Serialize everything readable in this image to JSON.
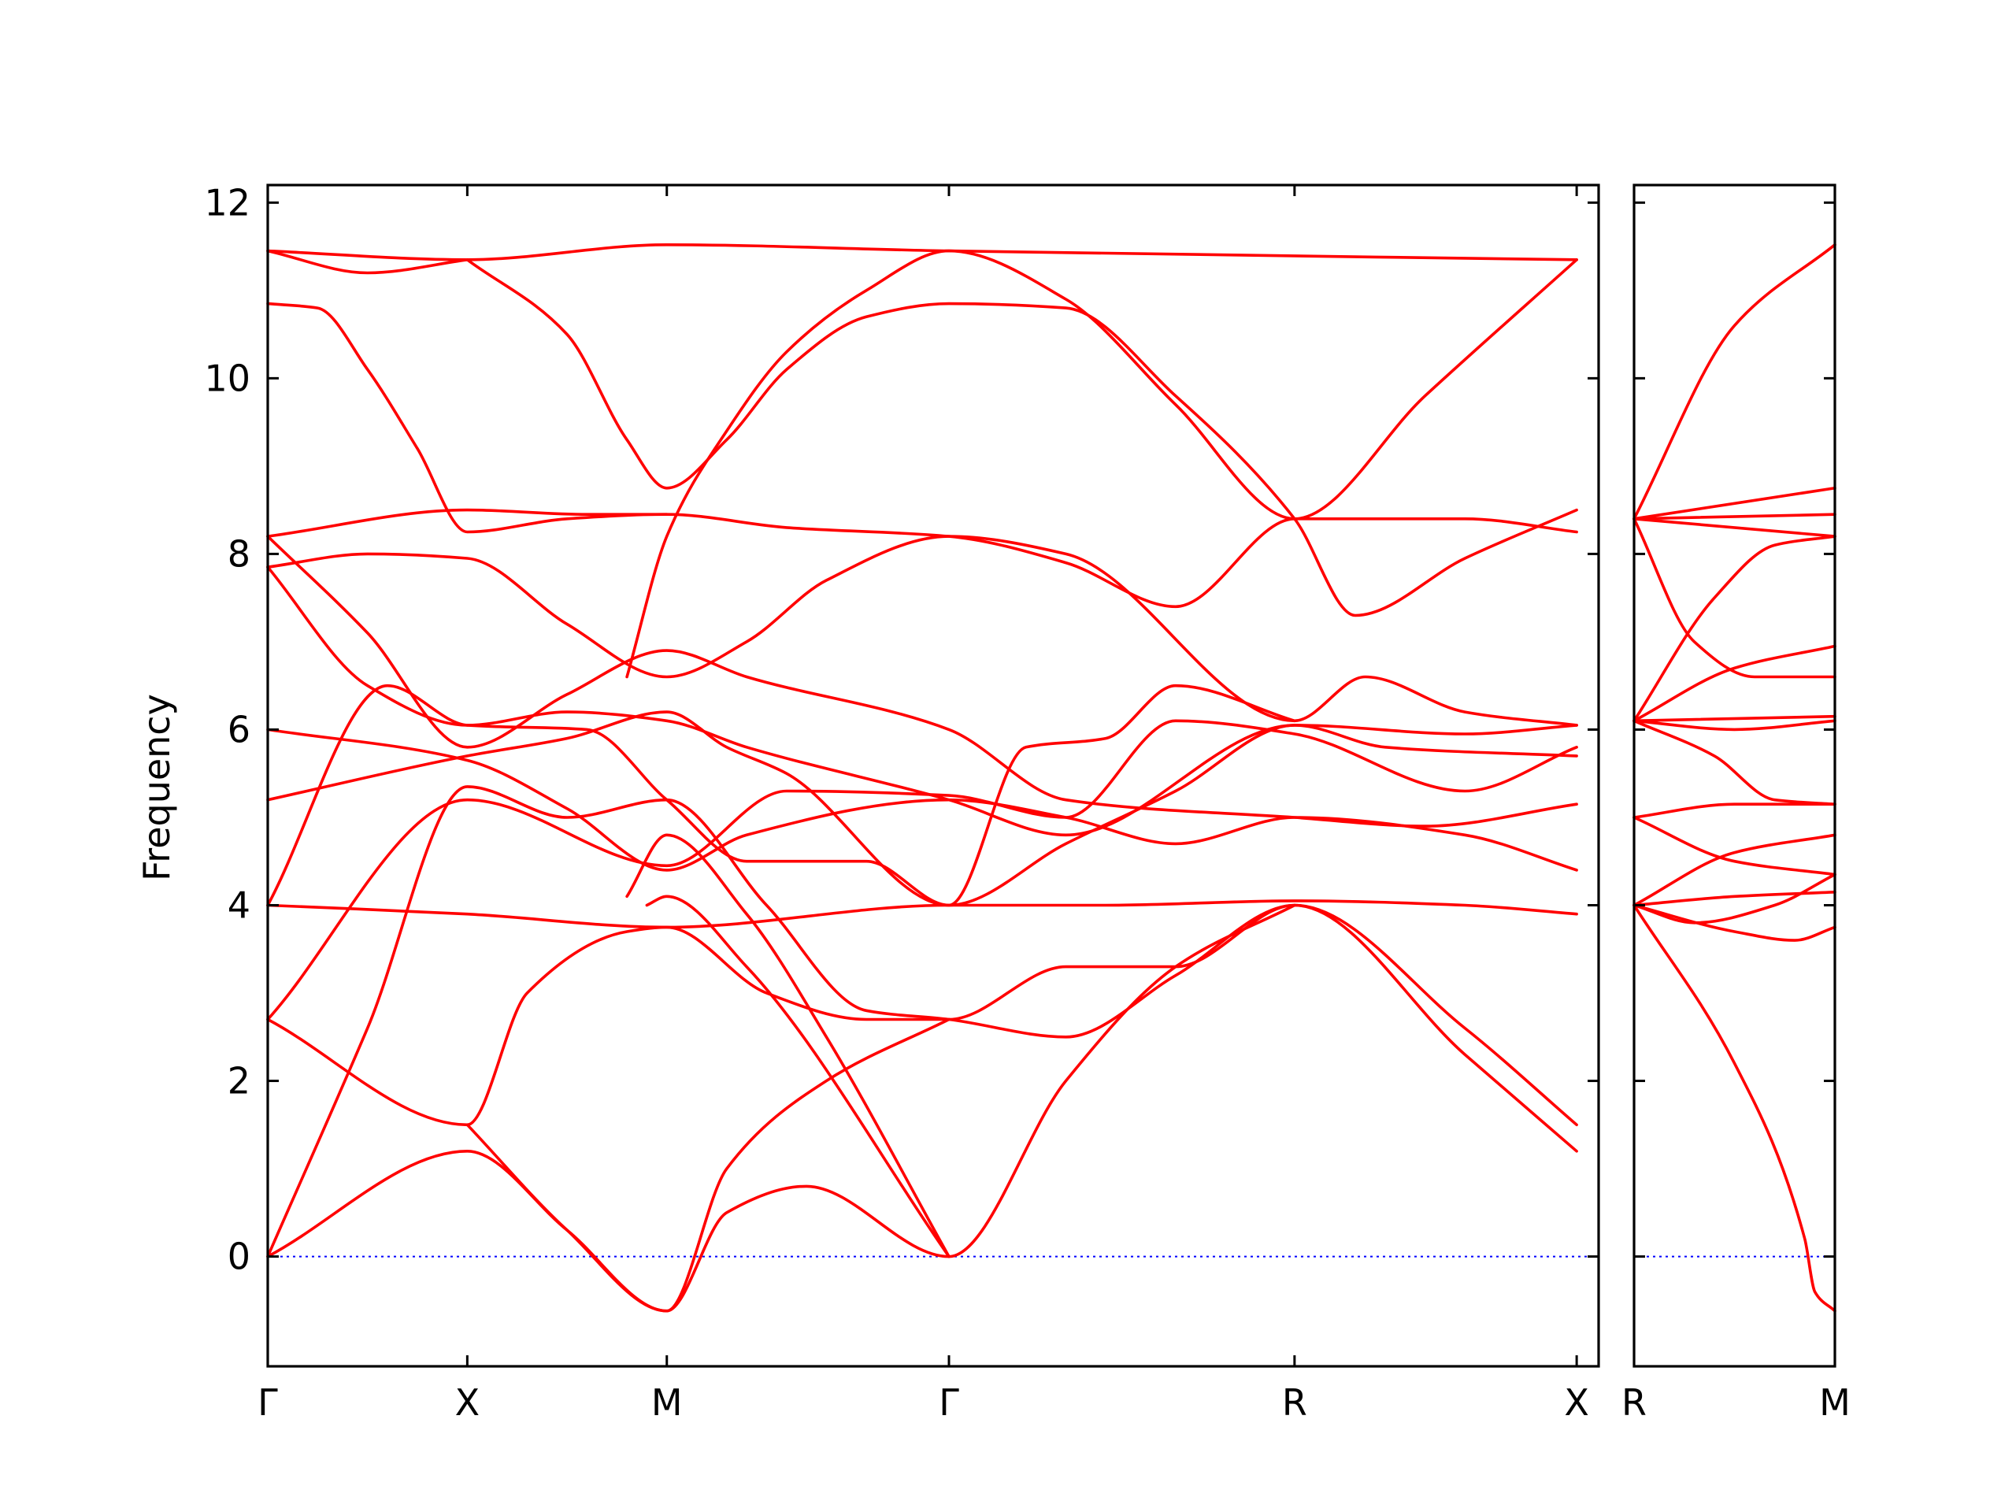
{
  "chart_data": {
    "type": "line",
    "ylabel": "Frequency",
    "ylim": [
      -1.25,
      12.2
    ],
    "yticks": [
      "0",
      "2",
      "4",
      "6",
      "8",
      "10",
      "12"
    ],
    "grid": false,
    "legend": "none",
    "colors": {
      "bands": "#ff0000",
      "zero_line": "#0000ff",
      "frame": "#000000"
    },
    "panels": [
      {
        "name": "main-path",
        "xlim": [
          0,
          6.67
        ],
        "ticks": [
          {
            "label": "Γ",
            "x": 0
          },
          {
            "label": "X",
            "x": 1
          },
          {
            "label": "M",
            "x": 2
          },
          {
            "label": "Γ",
            "x": 3.414
          },
          {
            "label": "R",
            "x": 5.146
          },
          {
            "label": "X",
            "x": 6.56
          }
        ],
        "bands": [
          [
            [
              0,
              11.45
            ],
            [
              1,
              11.35
            ],
            [
              2,
              11.52
            ],
            [
              3.414,
              11.45
            ],
            [
              6.56,
              11.35
            ]
          ],
          [
            [
              0,
              11.45
            ],
            [
              0.5,
              11.2
            ],
            [
              1,
              11.35
            ]
          ],
          [
            [
              0,
              10.85
            ],
            [
              0.25,
              10.8
            ],
            [
              0.5,
              10.1
            ],
            [
              0.75,
              9.2
            ],
            [
              1,
              8.25
            ],
            [
              1.5,
              8.4
            ],
            [
              2,
              8.45
            ],
            [
              2.6,
              8.3
            ],
            [
              3.414,
              8.2
            ],
            [
              4,
              7.9
            ],
            [
              4.55,
              7.4
            ],
            [
              5.146,
              8.4
            ],
            [
              6,
              8.4
            ],
            [
              6.56,
              8.25
            ]
          ],
          [
            [
              1,
              11.35
            ],
            [
              1.5,
              10.5
            ],
            [
              1.8,
              9.3
            ],
            [
              2,
              8.75
            ],
            [
              2.3,
              9.3
            ],
            [
              2.6,
              10.1
            ],
            [
              3,
              10.7
            ],
            [
              3.414,
              10.85
            ],
            [
              4,
              10.8
            ],
            [
              4.55,
              9.8
            ],
            [
              5.146,
              8.4
            ],
            [
              5.45,
              7.3
            ],
            [
              6,
              7.95
            ],
            [
              6.56,
              8.5
            ]
          ],
          [
            [
              1.8,
              6.6
            ],
            [
              2,
              8.2
            ],
            [
              2.3,
              9.4
            ],
            [
              2.6,
              10.3
            ],
            [
              3,
              11.0
            ],
            [
              3.414,
              11.45
            ],
            [
              4,
              10.9
            ],
            [
              4.55,
              9.7
            ],
            [
              5.146,
              8.4
            ],
            [
              5.8,
              9.8
            ],
            [
              6.56,
              11.35
            ]
          ],
          [
            [
              0,
              8.2
            ],
            [
              1,
              8.5
            ],
            [
              1.6,
              8.45
            ],
            [
              2,
              8.45
            ]
          ],
          [
            [
              0,
              7.85
            ],
            [
              0.5,
              8.0
            ],
            [
              1,
              7.95
            ],
            [
              1.5,
              7.2
            ],
            [
              2,
              6.6
            ],
            [
              2.4,
              7.0
            ],
            [
              2.8,
              7.7
            ],
            [
              3.414,
              8.2
            ],
            [
              4,
              8.0
            ],
            [
              5.146,
              6.1
            ],
            [
              5.5,
              6.6
            ],
            [
              6,
              6.2
            ],
            [
              6.56,
              6.05
            ]
          ],
          [
            [
              0,
              8.2
            ],
            [
              0.5,
              7.1
            ],
            [
              1,
              5.8
            ],
            [
              1.5,
              6.4
            ],
            [
              2,
              6.9
            ],
            [
              2.4,
              6.6
            ],
            [
              3.414,
              6.0
            ],
            [
              4,
              5.2
            ],
            [
              5.146,
              5.0
            ],
            [
              5.8,
              4.9
            ],
            [
              6.56,
              5.15
            ]
          ],
          [
            [
              0,
              7.85
            ],
            [
              0.5,
              6.5
            ],
            [
              1,
              6.05
            ],
            [
              1.5,
              6.2
            ],
            [
              2,
              6.1
            ],
            [
              2.4,
              5.8
            ],
            [
              3.414,
              5.2
            ],
            [
              4,
              4.8
            ],
            [
              5.146,
              6.05
            ],
            [
              5.6,
              5.8
            ],
            [
              6.56,
              5.7
            ]
          ],
          [
            [
              0,
              6.0
            ],
            [
              1,
              5.65
            ],
            [
              1.5,
              5.1
            ],
            [
              2,
              4.4
            ],
            [
              2.4,
              4.8
            ],
            [
              3.414,
              5.2
            ],
            [
              4,
              5.0
            ],
            [
              4.55,
              4.7
            ],
            [
              5.146,
              5.0
            ],
            [
              6,
              4.8
            ],
            [
              6.56,
              4.4
            ]
          ],
          [
            [
              0,
              5.2
            ],
            [
              1,
              5.7
            ],
            [
              1.5,
              5.9
            ],
            [
              2,
              6.2
            ],
            [
              2.3,
              5.8
            ],
            [
              2.6,
              5.5
            ],
            [
              3.414,
              4.0
            ],
            [
              4,
              4.7
            ],
            [
              4.55,
              5.3
            ],
            [
              5.146,
              6.05
            ],
            [
              6,
              5.95
            ],
            [
              6.56,
              6.05
            ]
          ],
          [
            [
              0,
              4.0
            ],
            [
              0.6,
              6.5
            ],
            [
              1,
              6.05
            ],
            [
              1.6,
              6.0
            ],
            [
              2,
              5.2
            ],
            [
              2.4,
              4.5
            ],
            [
              3,
              4.5
            ],
            [
              3.414,
              4.0
            ],
            [
              3.8,
              5.8
            ],
            [
              4.2,
              5.9
            ],
            [
              4.55,
              6.5
            ],
            [
              5.146,
              6.1
            ]
          ],
          [
            [
              0,
              2.7
            ],
            [
              1,
              5.2
            ],
            [
              2,
              4.45
            ],
            [
              2.6,
              5.3
            ],
            [
              3.414,
              5.25
            ],
            [
              4,
              5.0
            ],
            [
              4.55,
              6.1
            ],
            [
              5.146,
              5.95
            ],
            [
              6,
              5.3
            ],
            [
              6.56,
              5.8
            ]
          ],
          [
            [
              0,
              4.0
            ],
            [
              1,
              3.9
            ],
            [
              2,
              3.75
            ],
            [
              3.414,
              4.0
            ],
            [
              4.2,
              4.0
            ],
            [
              5.146,
              4.05
            ],
            [
              6,
              4.0
            ],
            [
              6.56,
              3.9
            ]
          ],
          [
            [
              0,
              0
            ],
            [
              0.5,
              2.6
            ],
            [
              1,
              5.35
            ],
            [
              1.5,
              5.0
            ],
            [
              2,
              5.2
            ],
            [
              2.5,
              4.0
            ],
            [
              3,
              2.8
            ],
            [
              3.414,
              2.7
            ],
            [
              4,
              2.5
            ],
            [
              4.55,
              3.2
            ],
            [
              5.146,
              4.0
            ],
            [
              6,
              2.6
            ],
            [
              6.56,
              1.5
            ]
          ],
          [
            [
              0,
              2.7
            ],
            [
              1,
              1.5
            ],
            [
              1.3,
              3.0
            ],
            [
              1.8,
              3.7
            ],
            [
              2,
              3.75
            ],
            [
              2.5,
              3.0
            ],
            [
              3,
              2.7
            ],
            [
              3.414,
              2.7
            ],
            [
              4,
              3.3
            ],
            [
              4.55,
              3.3
            ],
            [
              5.146,
              4.0
            ],
            [
              6,
              2.3
            ],
            [
              6.56,
              1.2
            ]
          ],
          [
            [
              0,
              0
            ],
            [
              1,
              1.2
            ],
            [
              1.5,
              0.3
            ],
            [
              2,
              -0.62
            ],
            [
              2.3,
              0.5
            ],
            [
              2.7,
              0.8
            ],
            [
              3.414,
              0
            ],
            [
              4,
              2.0
            ],
            [
              4.55,
              3.3
            ],
            [
              5.146,
              4.0
            ]
          ],
          [
            [
              1,
              1.5
            ],
            [
              1.5,
              0.3
            ],
            [
              2,
              -0.62
            ],
            [
              2.3,
              1.0
            ],
            [
              2.8,
              2.0
            ],
            [
              3.414,
              2.7
            ]
          ],
          [
            [
              1.8,
              4.1
            ],
            [
              2,
              4.8
            ],
            [
              2.4,
              3.9
            ],
            [
              2.8,
              2.5
            ],
            [
              3.414,
              0
            ]
          ],
          [
            [
              1.9,
              4.0
            ],
            [
              2,
              4.1
            ],
            [
              2.4,
              3.3
            ],
            [
              3.414,
              0
            ]
          ]
        ]
      },
      {
        "name": "side-path",
        "xlim": [
          0,
          1
        ],
        "ticks": [
          {
            "label": "R",
            "x": 0
          },
          {
            "label": "M",
            "x": 1
          }
        ],
        "bands": [
          [
            [
              0,
              8.4
            ],
            [
              0.5,
              10.6
            ],
            [
              1,
              11.52
            ]
          ],
          [
            [
              0,
              8.4
            ],
            [
              1,
              8.75
            ]
          ],
          [
            [
              0,
              8.4
            ],
            [
              1,
              8.45
            ]
          ],
          [
            [
              0,
              8.4
            ],
            [
              1,
              8.2
            ]
          ],
          [
            [
              0,
              8.4
            ],
            [
              0.3,
              7.0
            ],
            [
              0.6,
              6.6
            ],
            [
              1,
              6.6
            ]
          ],
          [
            [
              0,
              6.1
            ],
            [
              0.4,
              7.5
            ],
            [
              0.7,
              8.1
            ],
            [
              1,
              8.2
            ]
          ],
          [
            [
              0,
              6.1
            ],
            [
              0.5,
              6.7
            ],
            [
              1,
              6.95
            ]
          ],
          [
            [
              0,
              6.1
            ],
            [
              1,
              6.15
            ]
          ],
          [
            [
              0,
              6.1
            ],
            [
              0.5,
              6.0
            ],
            [
              1,
              6.1
            ]
          ],
          [
            [
              0,
              6.1
            ],
            [
              0.4,
              5.7
            ],
            [
              0.7,
              5.2
            ],
            [
              1,
              5.15
            ]
          ],
          [
            [
              0,
              5.0
            ],
            [
              0.5,
              5.15
            ],
            [
              1,
              5.15
            ]
          ],
          [
            [
              0,
              5.0
            ],
            [
              0.5,
              4.5
            ],
            [
              1,
              4.35
            ]
          ],
          [
            [
              0,
              4.0
            ],
            [
              0.5,
              4.6
            ],
            [
              1,
              4.8
            ]
          ],
          [
            [
              0,
              4.0
            ],
            [
              0.5,
              4.1
            ],
            [
              1,
              4.15
            ]
          ],
          [
            [
              0,
              4.0
            ],
            [
              0.5,
              3.7
            ],
            [
              0.8,
              3.6
            ],
            [
              1,
              3.75
            ]
          ],
          [
            [
              0,
              4.0
            ],
            [
              0.3,
              3.8
            ],
            [
              0.7,
              4.0
            ],
            [
              1,
              4.35
            ]
          ],
          [
            [
              0,
              4.0
            ],
            [
              0.5,
              2.2
            ],
            [
              0.85,
              0.2
            ],
            [
              0.9,
              -0.4
            ],
            [
              1,
              -0.62
            ]
          ]
        ]
      }
    ]
  }
}
